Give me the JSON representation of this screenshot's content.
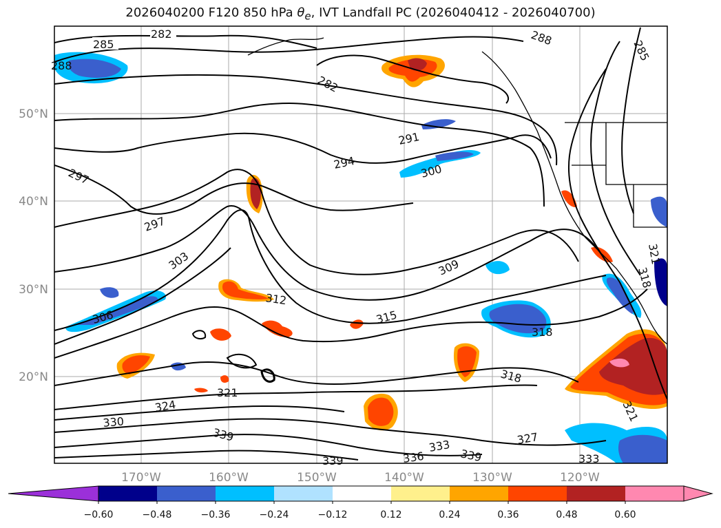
{
  "title": {
    "init": "2026040200",
    "forecast": "F120",
    "level": "850 hPa",
    "field_symbol": "θ",
    "field_sub": "e",
    "rest": ", IVT Landfall PC (2026040412 - 2026040700)"
  },
  "map": {
    "lon_ticks": [
      "170°W",
      "160°W",
      "150°W",
      "140°W",
      "130°W",
      "120°W"
    ],
    "lat_ticks": [
      "50°N",
      "40°N",
      "30°N",
      "20°N"
    ],
    "contour_labels": [
      "282",
      "285",
      "288",
      "282",
      "288",
      "285",
      "291",
      "294",
      "297",
      "300",
      "297",
      "303",
      "309",
      "306",
      "312",
      "315",
      "318",
      "318",
      "321",
      "324",
      "330",
      "339",
      "333",
      "336",
      "339",
      "327",
      "321",
      "321",
      "318",
      "333"
    ]
  },
  "colorbar": {
    "labels": [
      "−0.60",
      "−0.48",
      "−0.36",
      "−0.24",
      "−0.12",
      "0.12",
      "0.24",
      "0.36",
      "0.48",
      "0.60"
    ],
    "colors": {
      "under": "#9b30d9",
      "bins": [
        "#00008b",
        "#3a5fcd",
        "#00bfff",
        "#b0e2ff",
        "#ffffff",
        "#fff08c",
        "#ffa500",
        "#ff4500",
        "#b22222",
        "#ff88b0"
      ],
      "over": "#ff88b0"
    }
  }
}
